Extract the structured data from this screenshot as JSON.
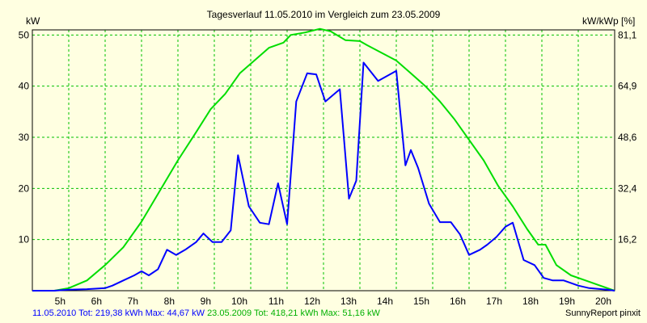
{
  "chart_data": {
    "type": "line",
    "title": "Tagesverlauf 11.05.2010 im Vergleich zum 23.05.2009",
    "ylabel": "kW",
    "y2label": "kW/kWp [%]",
    "xlim": [
      4,
      20
    ],
    "ylim": [
      0,
      51
    ],
    "x_ticks": [
      5,
      6,
      7,
      8,
      9,
      10,
      11,
      12,
      13,
      14,
      15,
      16,
      17,
      18,
      19,
      20
    ],
    "x_tick_labels": [
      "5h",
      "6h",
      "7h",
      "8h",
      "9h",
      "10h",
      "11h",
      "12h",
      "13h",
      "14h",
      "15h",
      "16h",
      "17h",
      "18h",
      "19h",
      "20h"
    ],
    "y_ticks": [
      10,
      20,
      30,
      40,
      50
    ],
    "y_tick_labels": [
      "10",
      "20",
      "30",
      "40",
      "50"
    ],
    "y2_ticks": [
      10,
      20,
      30,
      40,
      50
    ],
    "y2_tick_labels": [
      "16,2",
      "32,4",
      "48,6",
      "64,9",
      "81,1"
    ],
    "grid": true,
    "background": "#ffffe1",
    "grid_color": "#00c000",
    "series": [
      {
        "name": "11.05.2010",
        "color": "#0000ff",
        "x": [
          4.0,
          4.6,
          5.0,
          5.5,
          6.0,
          6.2,
          6.5,
          6.8,
          7.0,
          7.2,
          7.45,
          7.7,
          7.95,
          8.2,
          8.5,
          8.7,
          8.95,
          9.2,
          9.45,
          9.65,
          9.95,
          10.25,
          10.5,
          10.75,
          11.0,
          11.25,
          11.55,
          11.8,
          12.05,
          12.45,
          12.7,
          12.9,
          13.1,
          13.5,
          14.0,
          14.25,
          14.4,
          14.6,
          14.9,
          15.2,
          15.5,
          15.75,
          16.0,
          16.3,
          16.5,
          16.75,
          17.0,
          17.2,
          17.5,
          17.8,
          18.05,
          18.3,
          18.6,
          19.0,
          19.3,
          19.8,
          20.0
        ],
        "y": [
          0,
          0,
          0.2,
          0.3,
          0.5,
          1.0,
          2.0,
          3.0,
          3.8,
          3.0,
          4.2,
          8.0,
          7.0,
          8.0,
          9.5,
          11.2,
          9.5,
          9.5,
          11.8,
          26.5,
          16.5,
          13.3,
          13.0,
          21.0,
          13.0,
          37.0,
          42.5,
          42.3,
          37.0,
          39.4,
          18.0,
          21.5,
          44.6,
          41.0,
          43.0,
          24.5,
          27.5,
          24.0,
          17.0,
          13.4,
          13.4,
          11.0,
          7.0,
          8.0,
          9.0,
          10.5,
          12.5,
          13.3,
          6.0,
          5.0,
          2.5,
          2.0,
          2.0,
          1.0,
          0.5,
          0.2,
          0
        ]
      },
      {
        "name": "23.05.2009",
        "color": "#00dd00",
        "x": [
          4.0,
          4.6,
          5.0,
          5.5,
          6.0,
          6.5,
          7.0,
          7.5,
          8.0,
          8.5,
          8.9,
          9.3,
          9.7,
          10.1,
          10.5,
          10.9,
          11.1,
          11.5,
          11.9,
          12.2,
          12.6,
          13.0,
          13.2,
          13.6,
          14.0,
          14.4,
          14.8,
          15.2,
          15.6,
          16.0,
          16.4,
          16.8,
          17.2,
          17.6,
          17.9,
          18.1,
          18.4,
          18.8,
          19.2,
          19.6,
          20.0
        ],
        "y": [
          0,
          0,
          0.5,
          2.0,
          5.0,
          8.5,
          13.5,
          19.5,
          25.5,
          31.0,
          35.5,
          38.5,
          42.5,
          45.0,
          47.5,
          48.5,
          50.0,
          50.5,
          51.2,
          50.7,
          49.0,
          48.8,
          48.0,
          46.5,
          45.0,
          42.5,
          40.0,
          37.0,
          33.5,
          29.5,
          25.5,
          20.5,
          16.5,
          12.0,
          9.0,
          9.0,
          5.0,
          3.0,
          2.0,
          1.0,
          0
        ]
      }
    ],
    "footer": {
      "series1_text": "11.05.2010 Tot: 219,38 kWh Max: 44,67 kW",
      "series2_text": "23.05.2009 Tot: 418,21 kWh Max: 51,16 kW",
      "credit": "SunnyReport pinxit"
    }
  }
}
